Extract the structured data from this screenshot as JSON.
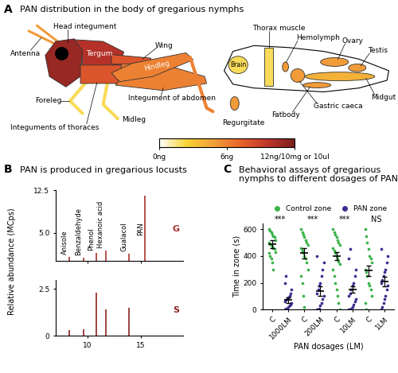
{
  "panel_labels": [
    "A",
    "B",
    "C"
  ],
  "panel_a": {
    "title": "PAN distribution in the body of gregarious nymphs",
    "body_parts": [
      {
        "name": "Antenna",
        "pan": 5
      },
      {
        "name": "Head integument",
        "pan": 11
      },
      {
        "name": "Tergum",
        "pan": 10
      },
      {
        "name": "Wing",
        "pan": 8
      },
      {
        "name": "Foreleg",
        "pan": 2
      },
      {
        "name": "Midleg",
        "pan": 2
      },
      {
        "name": "Hindleg",
        "pan": 6
      },
      {
        "name": "Integument of abdomen",
        "pan": 6
      },
      {
        "name": "Integuments of thoraces",
        "pan": 8
      }
    ],
    "internal_parts": [
      {
        "name": "Brain",
        "pan": 2
      },
      {
        "name": "Thorax muscle",
        "pan": 2
      },
      {
        "name": "Hemolymph",
        "pan": 5
      },
      {
        "name": "Ovary",
        "pan": 5
      },
      {
        "name": "Testis",
        "pan": 5
      },
      {
        "name": "Midgut",
        "pan": 4
      },
      {
        "name": "Gastric caeca",
        "pan": 5
      },
      {
        "name": "Fatbody",
        "pan": 5
      },
      {
        "name": "Regurgitate",
        "pan": 5
      }
    ],
    "colorbar": {
      "range": [
        0,
        12
      ],
      "ticks": [
        {
          "value": 0,
          "label": "0ng"
        },
        {
          "value": 6,
          "label": "6ng"
        },
        {
          "value": 12,
          "label": "12ng/10mg or 10ul"
        }
      ]
    }
  },
  "chart_data": [
    {
      "type": "chromatogram",
      "title": "PAN is produced in gregarious locusts",
      "y_label": "Relative abundance (MCps)",
      "peaks": [
        "Anisole",
        "Benzaldehyde",
        "Phenol",
        "Hexanoic acid",
        "Gualacol",
        "PAN"
      ],
      "x": [
        8.3,
        9.6,
        10.8,
        11.7,
        13.9,
        15.4
      ],
      "xlim": [
        7,
        19
      ],
      "xticks": [
        10,
        15
      ],
      "series": [
        {
          "name": "G",
          "color": "#a8322d",
          "values": [
            0.8,
            0.6,
            1.5,
            1.9,
            1.3,
            11.5
          ],
          "ylim": [
            0,
            12.5
          ],
          "yticks": [
            5.0,
            12.5
          ],
          "tick_labels": "y"
        },
        {
          "name": "S",
          "color": "#8c2320",
          "values": [
            0.3,
            0.35,
            2.3,
            1.4,
            1.5,
            0
          ],
          "ylim": [
            0,
            3
          ],
          "yticks": [
            0,
            2.5
          ]
        }
      ]
    },
    {
      "type": "scatter",
      "title": "Behavioral assays of gregarious nymphs to different dosages of PAN",
      "x_label": "PAN dosages (LM)",
      "y_label": "Time in zone (s)",
      "categories": [
        "C",
        "1000LM",
        "C",
        "200LM",
        "C",
        "10LM",
        "C",
        "1LM"
      ],
      "ylim": [
        0,
        640
      ],
      "yticks": [
        0,
        200,
        400,
        600
      ],
      "legend": "above",
      "annotations": [
        "***",
        "***",
        "***",
        "NS"
      ],
      "series": [
        {
          "name": "Control zone",
          "color": "#3bb44a",
          "marker": "o",
          "values": [
            490,
            null,
            420,
            null,
            400,
            null,
            290,
            null
          ],
          "errors": [
            30,
            null,
            40,
            null,
            30,
            null,
            40,
            null
          ],
          "points": [
            [
              600,
              590,
              580,
              560,
              550,
              540,
              520,
              500,
              490,
              480,
              470,
              460,
              450,
              430,
              420,
              400,
              380,
              350,
              300
            ],
            null,
            [
              600,
              580,
              560,
              540,
              520,
              500,
              480,
              460,
              440,
              420,
              400,
              380,
              350,
              300,
              250,
              200,
              100,
              20
            ],
            null,
            [
              600,
              580,
              560,
              540,
              520,
              500,
              480,
              460,
              440,
              420,
              400,
              380,
              360,
              340,
              300,
              250,
              200,
              150,
              100,
              50,
              0
            ],
            null,
            [
              600,
              550,
              500,
              450,
              400,
              380,
              350,
              300,
              280,
              250,
              200,
              180,
              150,
              100,
              50,
              0
            ],
            null
          ]
        },
        {
          "name": "PAN zone",
          "color": "#3b2f8f",
          "marker": "o",
          "values": [
            null,
            70,
            null,
            140,
            null,
            150,
            null,
            210
          ],
          "errors": [
            null,
            20,
            null,
            35,
            null,
            25,
            null,
            35
          ],
          "points": [
            null,
            [
              0,
              5,
              10,
              20,
              30,
              40,
              50,
              60,
              70,
              80,
              90,
              100,
              120,
              150,
              200,
              250
            ],
            null,
            [
              0,
              0,
              10,
              30,
              50,
              80,
              100,
              120,
              150,
              180,
              200,
              250,
              300,
              350,
              400
            ],
            null,
            [
              0,
              0,
              10,
              20,
              40,
              60,
              80,
              100,
              120,
              150,
              180,
              200,
              250,
              300,
              380,
              450
            ],
            null,
            [
              0,
              20,
              50,
              80,
              100,
              150,
              180,
              200,
              220,
              250,
              280,
              300,
              350,
              400,
              450
            ]
          ]
        }
      ]
    }
  ]
}
